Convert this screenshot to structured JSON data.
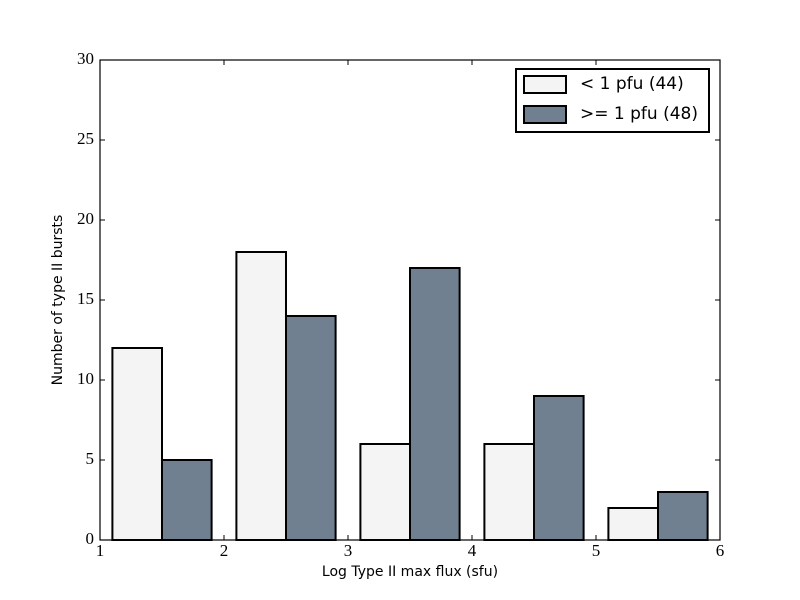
{
  "chart_data": {
    "type": "histogram",
    "xlabel": "Log Type II max flux (sfu)",
    "ylabel": "Number of type II bursts",
    "bins": [
      1,
      2,
      3,
      4,
      5,
      6
    ],
    "series": [
      {
        "name": "< 1 pfu (44)",
        "color": "#f4f4f4",
        "values": [
          12,
          18,
          6,
          6,
          2
        ]
      },
      {
        "name": ">= 1 pfu (48)",
        "color": "#708090",
        "values": [
          5,
          14,
          17,
          9,
          3
        ]
      }
    ],
    "xlim": [
      1,
      6
    ],
    "xticks": [
      1,
      2,
      3,
      4,
      5,
      6
    ],
    "ylim": [
      0,
      30
    ],
    "yticks": [
      0,
      5,
      10,
      15,
      20,
      25,
      30
    ],
    "legend": "upper right"
  }
}
